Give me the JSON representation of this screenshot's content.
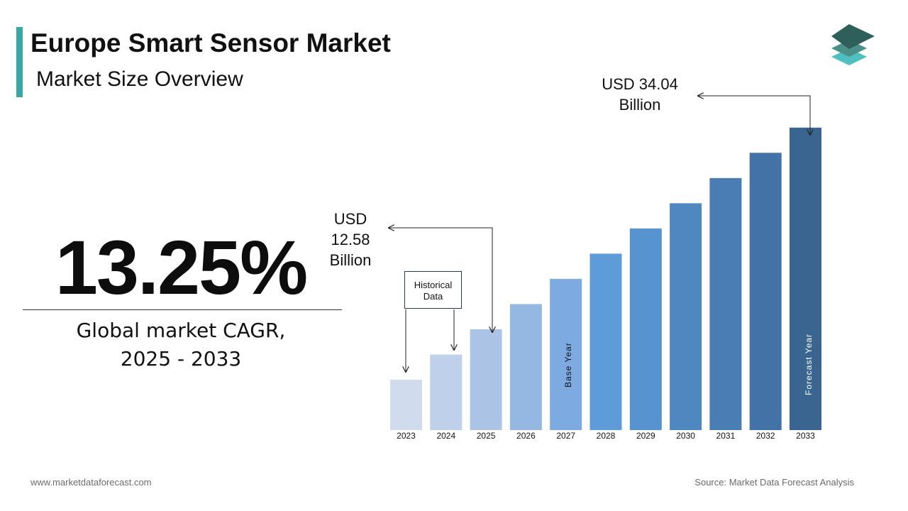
{
  "header": {
    "title": "Europe Smart Sensor Market",
    "subtitle": "Market Size Overview"
  },
  "cagr": {
    "value": "13.25%",
    "label_line1": "Global market CAGR,",
    "label_line2": "2025 - 2033"
  },
  "annotations": {
    "end_value_line1": "USD 34.04",
    "end_value_line2": "Billion",
    "base_value_line1": "USD",
    "base_value_line2": "12.58",
    "base_value_line3": "Billion",
    "historical_line1": "Historical",
    "historical_line2": "Data",
    "base_year": "Base Year",
    "forecast_year": "Forecast Year"
  },
  "footer": {
    "website": "www.marketdataforecast.com",
    "source": "Source: Market Data Forecast Analysis"
  },
  "colors": {
    "accent": "#3aa7a3",
    "logo_top": "#2f5f5a",
    "logo_middle": "#4a8f88",
    "logo_bottom": "#4fbfbf"
  },
  "chart_data": {
    "type": "bar",
    "categories": [
      "2023",
      "2024",
      "2025",
      "2026",
      "2027",
      "2028",
      "2029",
      "2030",
      "2031",
      "2032",
      "2033"
    ],
    "values": [
      4.4,
      6.6,
      8.8,
      11.0,
      13.2,
      15.4,
      17.6,
      19.8,
      22.0,
      24.2,
      26.4
    ],
    "ylim": [
      0,
      28
    ],
    "colors": [
      "#d0dcee",
      "#bfd0ea",
      "#abc4e6",
      "#95b8e2",
      "#7daae0",
      "#5e9bd9",
      "#5693cf",
      "#4f87c0",
      "#4a7db4",
      "#4373a6",
      "#3a6590"
    ],
    "grid": false,
    "legend": "none",
    "xlabel": "",
    "ylabel": ""
  }
}
